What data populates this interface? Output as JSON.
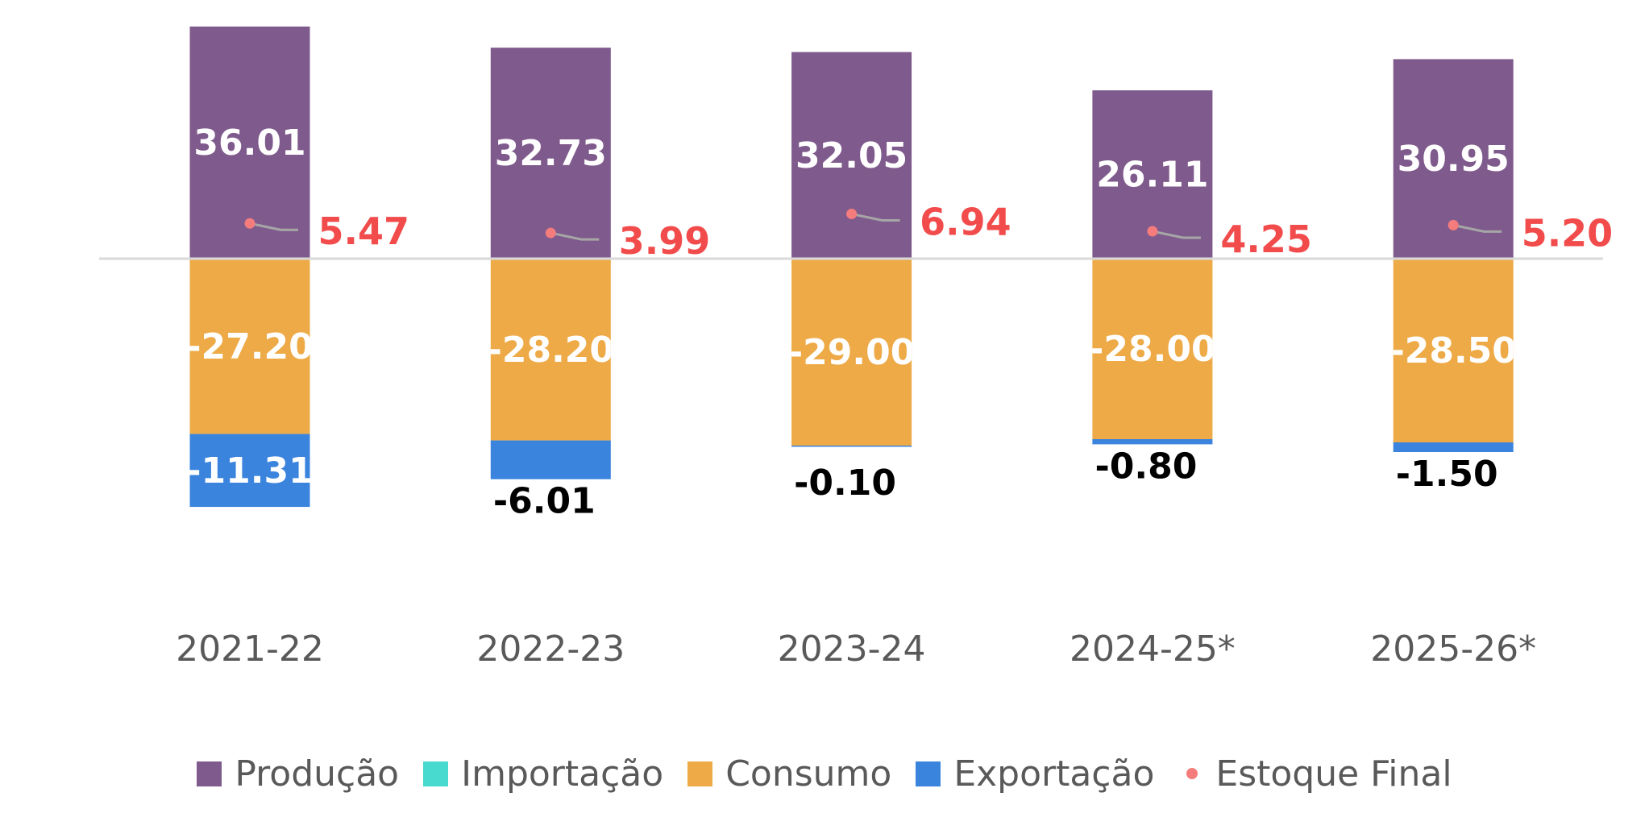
{
  "chart_data": {
    "type": "bar",
    "stacked": true,
    "title": "",
    "xlabel": "",
    "ylabel": "",
    "grid": false,
    "y_axis_visible": false,
    "legend_position": "bottom",
    "ylim": [
      -40,
      38
    ],
    "categories": [
      "2021-22",
      "2022-23",
      "2023-24",
      "2024-25*",
      "2025-26*"
    ],
    "series": [
      {
        "name": "Produção",
        "kind": "bar",
        "color": "#7F5A8C",
        "values": [
          36.01,
          32.73,
          32.05,
          26.11,
          30.95
        ],
        "labels": [
          "36.01",
          "32.73",
          "32.05",
          "26.11",
          "30.95"
        ]
      },
      {
        "name": "Importação",
        "kind": "bar",
        "color": "#48D9CF",
        "values": [
          0,
          0,
          0,
          0,
          0
        ],
        "labels": []
      },
      {
        "name": "Consumo",
        "kind": "bar",
        "color": "#EDAA47",
        "values": [
          -27.2,
          -28.2,
          -29.0,
          -28.0,
          -28.5
        ],
        "labels": [
          "-27.20",
          "-28.20",
          "-29.00",
          "-28.00",
          "-28.50"
        ]
      },
      {
        "name": "Exportação",
        "kind": "bar",
        "color": "#3A84DE",
        "values": [
          -11.31,
          -6.01,
          -0.1,
          -0.8,
          -1.5
        ],
        "labels": [
          "-11.31",
          "-6.01",
          "-0.10",
          "-0.80",
          "-1.50"
        ]
      },
      {
        "name": "Estoque Final",
        "kind": "point",
        "color": "#F47C7C",
        "label_color": "#F24B4B",
        "values": [
          5.47,
          3.99,
          6.94,
          4.25,
          5.2
        ],
        "labels": [
          "5.47",
          "3.99",
          "6.94",
          "4.25",
          "5.20"
        ]
      }
    ]
  },
  "legend": {
    "items": [
      {
        "label": "Produção",
        "marker": "square",
        "color": "#7F5A8C"
      },
      {
        "label": "Importação",
        "marker": "square",
        "color": "#48D9CF"
      },
      {
        "label": "Consumo",
        "marker": "square",
        "color": "#EDAA47"
      },
      {
        "label": "Exportação",
        "marker": "square",
        "color": "#3A84DE"
      },
      {
        "label": "Estoque Final",
        "marker": "dot",
        "color": "#F47C7C"
      }
    ]
  },
  "colors": {
    "zero_line": "#D9D9D9",
    "leader_line": "#A6A6A6",
    "category_text": "#595959"
  }
}
